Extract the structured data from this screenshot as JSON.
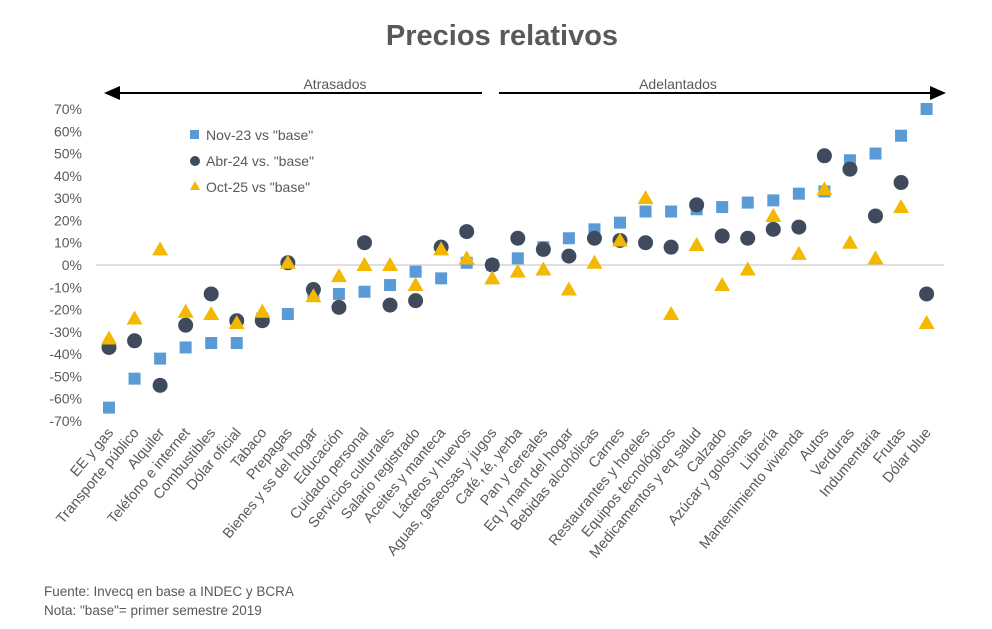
{
  "chart_data": {
    "type": "scatter",
    "title": "Precios relativos",
    "ylim": [
      -70,
      70
    ],
    "yticks": [
      70,
      60,
      50,
      40,
      30,
      20,
      10,
      0,
      -10,
      -20,
      -30,
      -40,
      -50,
      -60,
      -70
    ],
    "y_tick_format": "%",
    "grid": false,
    "legend_position": "top-left",
    "regions": [
      {
        "label": "Atrasados",
        "direction": "left"
      },
      {
        "label": "Adelantados",
        "direction": "right"
      }
    ],
    "categories": [
      "EE y gas",
      "Transporte público",
      "Alquiler",
      "Teléfono e internet",
      "Combustibles",
      "Dólar oficial",
      "Tabaco",
      "Prepagas",
      "Bienes y ss del hogar",
      "Educación",
      "Cuidado personal",
      "Servicios culturales",
      "Salario registrado",
      "Aceites y manteca",
      "Lácteos y huevos",
      "Aguas, gaseosas y jugos",
      "Café, té, yerba",
      "Pan y cereales",
      "Eq y mant del hogar",
      "Bebidas alcohólicas",
      "Carnes",
      "Restaurantes y hoteles",
      "Equipos tecnológicos",
      "Medicamentos y eq salud",
      "Calzado",
      "Azúcar y golosinas",
      "Librería",
      "Mantenimiento vivienda",
      "Autos",
      "Verduras",
      "Indumentaria",
      "Frutas",
      "Dólar blue"
    ],
    "series": [
      {
        "name": "Nov-23 vs \"base\"",
        "marker": "square",
        "color": "#5B9BD5",
        "values": [
          -64,
          -51,
          -42,
          -37,
          -35,
          -35,
          -24,
          -22,
          -13,
          -13,
          -12,
          -9,
          -3,
          -6,
          1,
          0,
          3,
          8,
          12,
          16,
          19,
          24,
          24,
          25,
          26,
          28,
          29,
          32,
          33,
          47,
          50,
          58,
          70
        ]
      },
      {
        "name": "Abr-24 vs. \"base\"",
        "marker": "circle",
        "color": "#3F4A5C",
        "values": [
          -37,
          -34,
          -54,
          -27,
          -13,
          -25,
          -25,
          1,
          -11,
          -19,
          10,
          -18,
          -16,
          8,
          15,
          0,
          12,
          7,
          4,
          12,
          11,
          10,
          8,
          27,
          13,
          12,
          16,
          17,
          49,
          43,
          22,
          37,
          -13
        ]
      },
      {
        "name": "Oct-25 vs \"base\"",
        "marker": "triangle",
        "color": "#F5B800",
        "values": [
          -33,
          -24,
          7,
          -21,
          -22,
          -26,
          -21,
          1,
          -14,
          -5,
          0,
          0,
          -9,
          7,
          3,
          -6,
          -3,
          -2,
          -11,
          1,
          11,
          30,
          -22,
          9,
          -9,
          -2,
          22,
          5,
          34,
          10,
          3,
          26,
          -26
        ]
      }
    ]
  },
  "footnotes": {
    "source": "Fuente: Invecq en base a INDEC y BCRA",
    "note": "Nota: \"base\"= primer semestre 2019"
  }
}
